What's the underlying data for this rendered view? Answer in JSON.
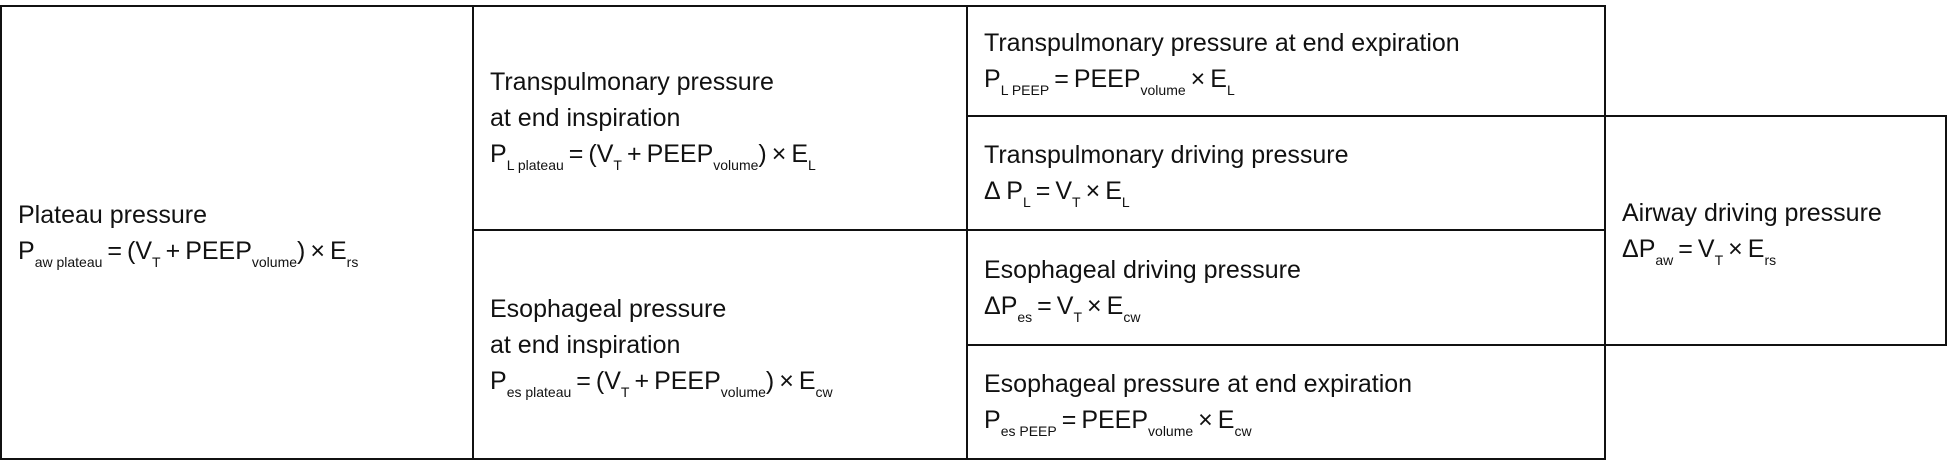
{
  "cells": [
    {
      "id": "plateau-pressure",
      "title": [
        "Plateau pressure"
      ],
      "formula": [
        [
          "P",
          "aw plateau"
        ],
        [
          "="
        ],
        [
          "(V",
          "T"
        ],
        [
          "+"
        ],
        [
          "PEEP",
          "volume"
        ],
        [
          ")"
        ],
        [
          "×"
        ],
        [
          "E",
          "rs"
        ]
      ]
    },
    {
      "id": "transpulmonary-end-inspiration",
      "title": [
        "Transpulmonary pressure",
        "at end inspiration"
      ],
      "formula": [
        [
          "P",
          "L plateau"
        ],
        [
          "="
        ],
        [
          "(V",
          "T"
        ],
        [
          "+"
        ],
        [
          "PEEP",
          "volume"
        ],
        [
          ")"
        ],
        [
          "×"
        ],
        [
          "E",
          "L"
        ]
      ]
    },
    {
      "id": "esophageal-end-inspiration",
      "title": [
        "Esophageal pressure",
        "at end inspiration"
      ],
      "formula": [
        [
          "P",
          "es plateau"
        ],
        [
          "="
        ],
        [
          "(V",
          "T"
        ],
        [
          "+"
        ],
        [
          "PEEP",
          "volume"
        ],
        [
          ")"
        ],
        [
          "×"
        ],
        [
          "E",
          "cw"
        ]
      ]
    },
    {
      "id": "transpulmonary-end-expiration",
      "title": [
        "Transpulmonary pressure at end expiration"
      ],
      "formula": [
        [
          "P",
          "L PEEP"
        ],
        [
          "="
        ],
        [
          "PEEP",
          "volume"
        ],
        [
          "×"
        ],
        [
          "E",
          "L"
        ]
      ]
    },
    {
      "id": "transpulmonary-driving-pressure",
      "title": [
        "Transpulmonary driving pressure"
      ],
      "formula": [
        [
          "Δ P",
          "L"
        ],
        [
          "="
        ],
        [
          "V",
          "T"
        ],
        [
          "×"
        ],
        [
          "E",
          "L"
        ]
      ]
    },
    {
      "id": "esophageal-driving-pressure",
      "title": [
        "Esophageal driving pressure"
      ],
      "formula": [
        [
          "ΔP",
          "es"
        ],
        [
          "="
        ],
        [
          "V",
          "T"
        ],
        [
          "×"
        ],
        [
          "E",
          "cw"
        ]
      ]
    },
    {
      "id": "esophageal-end-expiration",
      "title": [
        "Esophageal pressure at end expiration"
      ],
      "formula": [
        [
          "P",
          "es PEEP"
        ],
        [
          "="
        ],
        [
          "PEEP",
          "volume"
        ],
        [
          "×"
        ],
        [
          "E",
          "cw"
        ]
      ]
    },
    {
      "id": "airway-driving-pressure",
      "title": [
        "Airway driving pressure"
      ],
      "formula": [
        [
          "ΔP",
          "aw"
        ],
        [
          "="
        ],
        [
          "V",
          "T"
        ],
        [
          "×"
        ],
        [
          "E",
          "rs"
        ]
      ]
    }
  ]
}
